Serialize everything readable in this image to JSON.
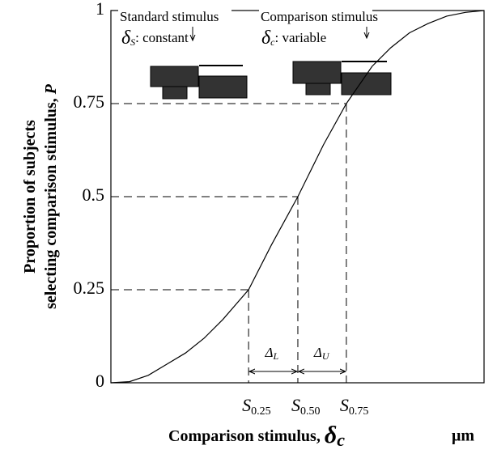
{
  "chart_data": {
    "type": "line",
    "y_label_lines": [
      "Proportion of subjects",
      "selecting comparison stimulus,"
    ],
    "y_label_symbol": "P",
    "x_label": "Comparison stimulus,",
    "x_label_symbol": "δ",
    "x_label_subscript": "c",
    "x_unit": "μm",
    "x": [
      0,
      0.05,
      0.1,
      0.15,
      0.2,
      0.25,
      0.3,
      0.369,
      0.43,
      0.501,
      0.57,
      0.631,
      0.7,
      0.75,
      0.8,
      0.85,
      0.9,
      0.95,
      1
    ],
    "values": [
      0,
      0.003,
      0.02,
      0.05,
      0.08,
      0.12,
      0.17,
      0.25,
      0.37,
      0.5,
      0.64,
      0.75,
      0.85,
      0.9,
      0.94,
      0.965,
      0.985,
      0.995,
      1
    ],
    "color": "#000000",
    "xlim": [
      0,
      1
    ],
    "ylim": [
      0,
      1
    ],
    "yticks": [
      0,
      0.25,
      0.5,
      0.75,
      1
    ],
    "thresholds": [
      {
        "symbol": "S",
        "subscript": "0.25",
        "x": 0.369,
        "p": 0.25
      },
      {
        "symbol": "S",
        "subscript": "0.50",
        "x": 0.501,
        "p": 0.5
      },
      {
        "symbol": "S",
        "subscript": "0.75",
        "x": 0.631,
        "p": 0.75
      }
    ],
    "intervals": [
      {
        "symbol": "Δ",
        "subscript": "L"
      },
      {
        "symbol": "Δ",
        "subscript": "U"
      }
    ],
    "insets": [
      {
        "title": "Standard stimulus",
        "symbol": "δ",
        "subscript": "S",
        "text": ": constant"
      },
      {
        "title": "Comparison stimulus",
        "symbol": "δ",
        "subscript": "c",
        "text": ": variable"
      }
    ]
  }
}
